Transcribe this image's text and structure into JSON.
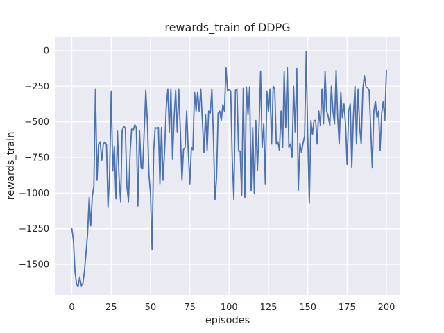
{
  "chart_data": {
    "type": "line",
    "title": "rewards_train of DDPG",
    "xlabel": "episodes",
    "ylabel": "rewards_train",
    "legend": "none",
    "grid": "on",
    "x_description": "episode index, one point per episode",
    "x_start": 0,
    "x_step": 1,
    "xlim": [
      -10.4,
      208.6
    ],
    "ylim": [
      -1714,
      97
    ],
    "xticks": [
      0,
      25,
      50,
      75,
      100,
      125,
      150,
      175,
      200
    ],
    "xtick_labels": [
      "0",
      "25",
      "50",
      "75",
      "100",
      "125",
      "150",
      "175",
      "200"
    ],
    "yticks": [
      0,
      -250,
      -500,
      -750,
      -1000,
      -1250,
      -1500
    ],
    "ytick_labels": [
      "0",
      "−250",
      "−500",
      "−750",
      "−1000",
      "−1250",
      "−1500"
    ],
    "colors": {
      "line": "#4c72b0",
      "plot_background": "#eaeaf2",
      "gridline": "#ffffff",
      "figure_background": "#ffffff",
      "text": "#262626"
    },
    "values": [
      -1250,
      -1330,
      -1550,
      -1640,
      -1655,
      -1590,
      -1650,
      -1635,
      -1550,
      -1420,
      -1290,
      -1030,
      -1230,
      -1020,
      -950,
      -270,
      -910,
      -655,
      -640,
      -770,
      -655,
      -640,
      -660,
      -1100,
      -860,
      -285,
      -845,
      -670,
      -1040,
      -565,
      -890,
      -1060,
      -560,
      -530,
      -545,
      -950,
      -1060,
      -720,
      -550,
      -560,
      -520,
      -540,
      -1090,
      -560,
      -820,
      -830,
      -560,
      -280,
      -490,
      -870,
      -1000,
      -1395,
      -705,
      -540,
      -545,
      -540,
      -935,
      -540,
      -910,
      -700,
      -400,
      -270,
      -570,
      -270,
      -760,
      -480,
      -280,
      -570,
      -270,
      -570,
      -910,
      -695,
      -680,
      -425,
      -695,
      -935,
      -680,
      -695,
      -290,
      -425,
      -290,
      -425,
      -270,
      -490,
      -715,
      -450,
      -700,
      -425,
      -440,
      -270,
      -600,
      -1045,
      -890,
      -440,
      -425,
      -490,
      -380,
      -425,
      -120,
      -280,
      -275,
      -285,
      -765,
      -1045,
      -280,
      -270,
      -705,
      -705,
      -1015,
      -265,
      -1030,
      -255,
      -450,
      -255,
      -985,
      -540,
      -1005,
      -490,
      -840,
      -540,
      -145,
      -680,
      -515,
      -935,
      -285,
      -425,
      -270,
      -655,
      -250,
      -270,
      -655,
      -640,
      -700,
      -425,
      -680,
      -150,
      -540,
      -120,
      -680,
      -655,
      -750,
      -250,
      -570,
      -125,
      -980,
      -650,
      -715,
      -650,
      -600,
      -5,
      -600,
      -1070,
      -490,
      -590,
      -490,
      -490,
      -655,
      -425,
      -525,
      -270,
      -515,
      -145,
      -425,
      -460,
      -525,
      -250,
      -425,
      -515,
      -140,
      -460,
      -655,
      -290,
      -470,
      -375,
      -515,
      -800,
      -425,
      -375,
      -820,
      -460,
      -250,
      -655,
      -270,
      -540,
      -655,
      -270,
      -175,
      -255,
      -260,
      -280,
      -535,
      -820,
      -425,
      -355,
      -470,
      -425,
      -700,
      -440,
      -355,
      -490,
      -140
    ]
  }
}
